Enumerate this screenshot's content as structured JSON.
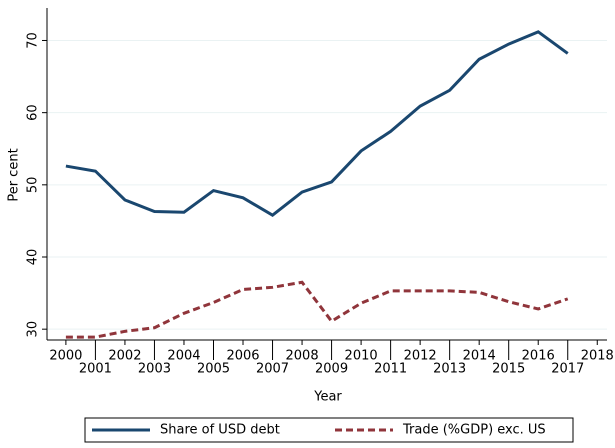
{
  "chart_data": {
    "type": "line",
    "xlabel": "Year",
    "ylabel": "Per cent",
    "x": [
      2000,
      2001,
      2002,
      2003,
      2004,
      2005,
      2006,
      2007,
      2008,
      2009,
      2010,
      2011,
      2012,
      2013,
      2014,
      2015,
      2016,
      2017
    ],
    "series": [
      {
        "name": "Share of USD debt",
        "color": "#1a476f",
        "dash": false,
        "values": [
          52.6,
          51.9,
          47.9,
          46.3,
          46.2,
          49.2,
          48.2,
          45.8,
          49.0,
          50.4,
          54.7,
          57.4,
          60.9,
          63.1,
          67.4,
          69.5,
          71.2,
          68.2
        ]
      },
      {
        "name": "Trade (%GDP) exc. US",
        "color": "#90353b",
        "dash": true,
        "values": [
          28.9,
          28.9,
          29.7,
          30.2,
          32.2,
          33.7,
          35.5,
          35.8,
          36.5,
          31.1,
          33.6,
          35.3,
          35.3,
          35.3,
          35.1,
          33.8,
          32.8,
          34.2
        ]
      }
    ],
    "xlim": [
      1999.36,
      2018.33
    ],
    "xticks": [
      2000,
      2001,
      2002,
      2003,
      2004,
      2005,
      2006,
      2007,
      2008,
      2009,
      2010,
      2011,
      2012,
      2013,
      2014,
      2015,
      2016,
      2017,
      2018
    ],
    "ylim": [
      28.5,
      74.5
    ],
    "yticks": [
      30,
      40,
      50,
      60,
      70
    ],
    "grid": true
  }
}
